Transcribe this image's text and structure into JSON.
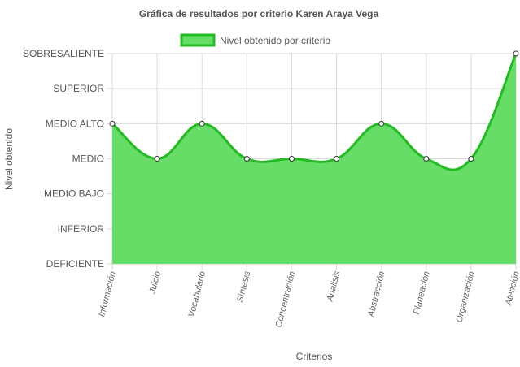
{
  "chart_data": {
    "type": "area",
    "title": "Gráfica de resultados por criterio Karen Araya Vega",
    "xlabel": "Criterios",
    "ylabel": "Nivel obtenido",
    "legend_position": "top",
    "y_levels": [
      "DEFICIENTE",
      "INFERIOR",
      "MEDIO BAJO",
      "MEDIO",
      "MEDIO ALTO",
      "SUPERIOR",
      "SOBRESALIENTE"
    ],
    "ylim": [
      1,
      7
    ],
    "categories": [
      "Información",
      "Juicio",
      "Vocabulario",
      "Síntesis",
      "Concentración",
      "Análisis",
      "Abstracción",
      "Planeación",
      "Organización",
      "Atención"
    ],
    "series": [
      {
        "name": "Nivel obtenido por criterio",
        "values": [
          5,
          4,
          5,
          4,
          4,
          4,
          5,
          4,
          4,
          7
        ],
        "fill_color": "#66dd66",
        "line_color": "#22bb22"
      }
    ],
    "grid": true
  }
}
